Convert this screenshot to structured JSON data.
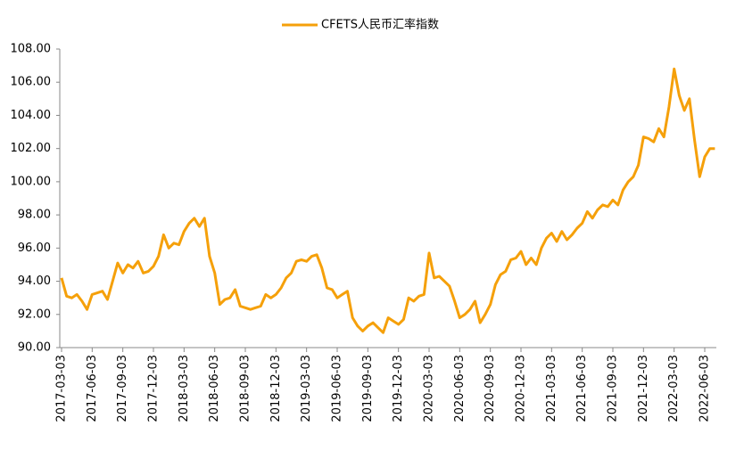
{
  "chart_data": {
    "type": "line",
    "series": [
      {
        "name": "CFETS人民币汇率指数",
        "color": "#f5a00a",
        "values": [
          94.2,
          93.1,
          93.0,
          93.2,
          92.8,
          92.3,
          93.2,
          93.3,
          93.4,
          92.9,
          94.0,
          95.1,
          94.5,
          95.0,
          94.8,
          95.2,
          94.5,
          94.6,
          94.9,
          95.5,
          96.8,
          96.0,
          96.3,
          96.2,
          97.0,
          97.5,
          97.8,
          97.3,
          97.8,
          95.5,
          94.5,
          92.6,
          92.9,
          93.0,
          93.5,
          92.5,
          92.4,
          92.3,
          92.4,
          92.5,
          93.2,
          93.0,
          93.2,
          93.6,
          94.2,
          94.5,
          95.2,
          95.3,
          95.2,
          95.5,
          95.6,
          94.8,
          93.6,
          93.5,
          93.0,
          93.2,
          93.4,
          91.8,
          91.3,
          91.0,
          91.3,
          91.5,
          91.2,
          90.9,
          91.8,
          91.6,
          91.4,
          91.7,
          93.0,
          92.8,
          93.1,
          93.2,
          95.7,
          94.2,
          94.3,
          94.0,
          93.7,
          92.8,
          91.8,
          92.0,
          92.3,
          92.8,
          91.5,
          92.0,
          92.6,
          93.8,
          94.4,
          94.6,
          95.3,
          95.4,
          95.8,
          95.0,
          95.4,
          95.0,
          96.0,
          96.6,
          96.9,
          96.4,
          97.0,
          96.5,
          96.8,
          97.2,
          97.5,
          98.2,
          97.8,
          98.3,
          98.6,
          98.5,
          98.9,
          98.6,
          99.5,
          100.0,
          100.3,
          101.0,
          102.7,
          102.6,
          102.4,
          103.2,
          102.7,
          104.5,
          106.8,
          105.2,
          104.3,
          105.0,
          102.5,
          100.3,
          101.5,
          102.0,
          102.0
        ]
      }
    ],
    "categories": [
      "2017-03-03",
      null,
      null,
      null,
      null,
      null,
      "2017-06-03",
      null,
      null,
      null,
      null,
      null,
      "2017-09-03",
      null,
      null,
      null,
      null,
      null,
      "2017-12-03",
      null,
      null,
      null,
      null,
      null,
      "2018-03-03",
      null,
      null,
      null,
      null,
      null,
      "2018-06-03",
      null,
      null,
      null,
      null,
      null,
      "2018-09-03",
      null,
      null,
      null,
      null,
      null,
      "2018-12-03",
      null,
      null,
      null,
      null,
      null,
      "2019-03-03",
      null,
      null,
      null,
      null,
      null,
      "2019-06-03",
      null,
      null,
      null,
      null,
      null,
      "2019-09-03",
      null,
      null,
      null,
      null,
      null,
      "2019-12-03",
      null,
      null,
      null,
      null,
      null,
      "2020-03-03",
      null,
      null,
      null,
      null,
      null,
      "2020-06-03",
      null,
      null,
      null,
      null,
      null,
      "2020-09-03",
      null,
      null,
      null,
      null,
      null,
      "2020-12-03",
      null,
      null,
      null,
      null,
      null,
      "2021-03-03",
      null,
      null,
      null,
      null,
      null,
      "2021-06-03",
      null,
      null,
      null,
      null,
      null,
      "2021-09-03",
      null,
      null,
      null,
      null,
      null,
      "2021-12-03",
      null,
      null,
      null,
      null,
      null,
      "2022-03-03",
      null,
      null,
      null,
      null,
      null,
      "2022-06-03",
      null,
      null
    ],
    "ylim": [
      90,
      108
    ],
    "yticks": [
      {
        "value": 90,
        "label": "90.00"
      },
      {
        "value": 92,
        "label": "92.00"
      },
      {
        "value": 94,
        "label": "94.00"
      },
      {
        "value": 96,
        "label": "96.00"
      },
      {
        "value": 98,
        "label": "98.00"
      },
      {
        "value": 100,
        "label": "100.00"
      },
      {
        "value": 102,
        "label": "102.00"
      },
      {
        "value": 104,
        "label": "104.00"
      },
      {
        "value": 106,
        "label": "106.00"
      },
      {
        "value": 108,
        "label": "108.00"
      }
    ],
    "legend": "top"
  }
}
